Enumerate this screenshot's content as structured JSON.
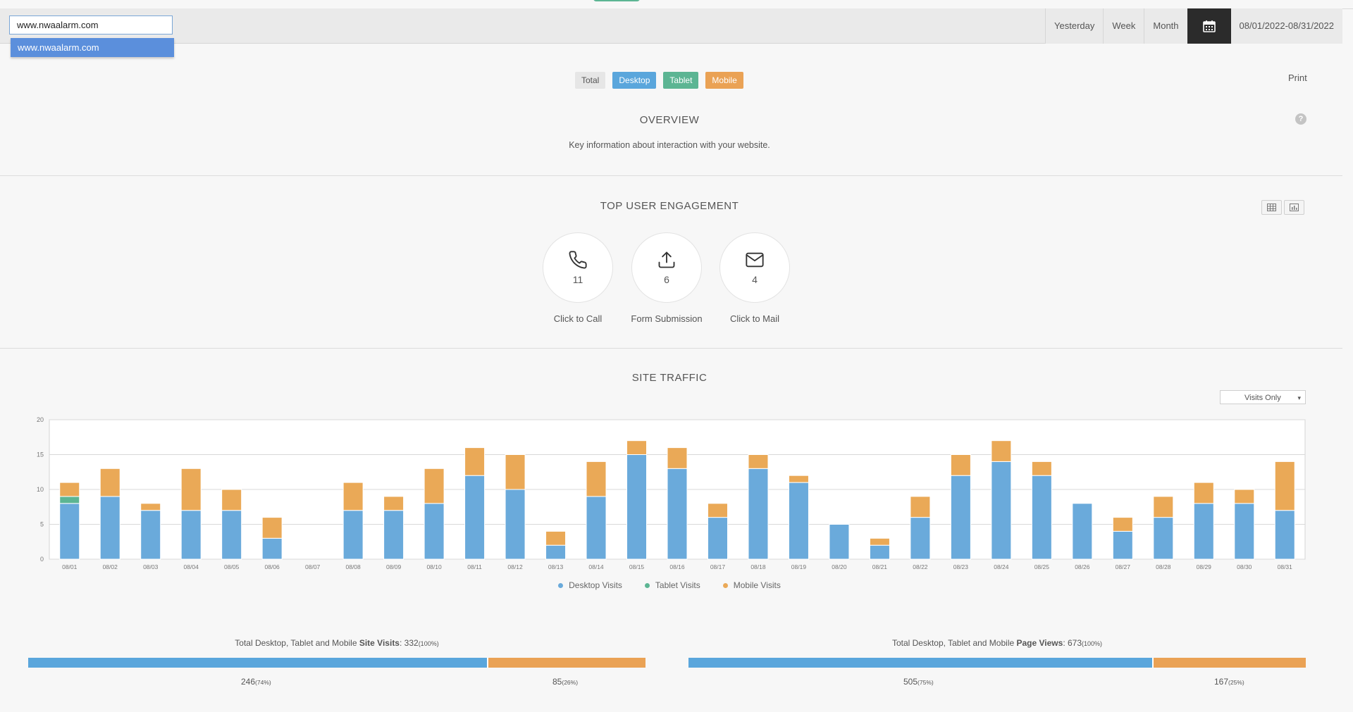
{
  "toolbar": {
    "site_value": "www.nwaalarm.com",
    "dropdown_option": "www.nwaalarm.com",
    "ranges": [
      "Yesterday",
      "Week",
      "Month"
    ],
    "calendar_icon": "calendar-icon",
    "date_range": "08/01/2022-08/31/2022"
  },
  "filters": {
    "total": "Total",
    "desktop": "Desktop",
    "tablet": "Tablet",
    "mobile": "Mobile"
  },
  "print_label": "Print",
  "overview": {
    "title": "OVERVIEW",
    "subtitle": "Key information about interaction with your website.",
    "help": "?"
  },
  "engagement": {
    "title": "TOP  USER  ENGAGEMENT",
    "items": [
      {
        "icon": "phone-icon",
        "value": "11",
        "label": "Click to Call"
      },
      {
        "icon": "upload-icon",
        "value": "6",
        "label": "Form Submission"
      },
      {
        "icon": "mail-icon",
        "value": "4",
        "label": "Click to Mail"
      }
    ]
  },
  "traffic": {
    "title": "SITE  TRAFFIC",
    "select": "Visits Only"
  },
  "chart_data": {
    "type": "bar",
    "stacked": true,
    "categories": [
      "08/01",
      "08/02",
      "08/03",
      "08/04",
      "08/05",
      "08/06",
      "08/07",
      "08/08",
      "08/09",
      "08/10",
      "08/11",
      "08/12",
      "08/13",
      "08/14",
      "08/15",
      "08/16",
      "08/17",
      "08/18",
      "08/19",
      "08/20",
      "08/21",
      "08/22",
      "08/23",
      "08/24",
      "08/25",
      "08/26",
      "08/27",
      "08/28",
      "08/29",
      "08/30",
      "08/31"
    ],
    "series": [
      {
        "name": "Desktop Visits",
        "color": "#6aaadb",
        "values": [
          8,
          9,
          7,
          7,
          7,
          3,
          0,
          7,
          7,
          8,
          12,
          10,
          2,
          9,
          15,
          13,
          6,
          13,
          11,
          5,
          2,
          6,
          12,
          14,
          12,
          8,
          4,
          6,
          8,
          8,
          7
        ]
      },
      {
        "name": "Tablet Visits",
        "color": "#5cb593",
        "values": [
          1,
          0,
          0,
          0,
          0,
          0,
          0,
          0,
          0,
          0,
          0,
          0,
          0,
          0,
          0,
          0,
          0,
          0,
          0,
          0,
          0,
          0,
          0,
          0,
          0,
          0,
          0,
          0,
          0,
          0,
          0
        ]
      },
      {
        "name": "Mobile Visits",
        "color": "#eaa957",
        "values": [
          2,
          4,
          1,
          6,
          3,
          3,
          0,
          4,
          2,
          5,
          4,
          5,
          2,
          5,
          2,
          3,
          2,
          2,
          1,
          0,
          1,
          3,
          3,
          3,
          2,
          0,
          2,
          3,
          3,
          2,
          7
        ]
      }
    ],
    "ylim": [
      0,
      20
    ],
    "yticks": [
      0,
      5,
      10,
      15,
      20
    ],
    "grid": true,
    "legend": "bottom"
  },
  "stats": {
    "visits": {
      "prefix": "Total Desktop, Tablet and Mobile ",
      "bold": "Site Visits",
      "value": ": 332",
      "pct": "(100%)",
      "desktop": 246,
      "desktop_pct": "(74%)",
      "mobile": 85,
      "mobile_pct": "(26%)"
    },
    "views": {
      "prefix": "Total Desktop, Tablet and Mobile ",
      "bold": "Page Views",
      "value": ": 673",
      "pct": "(100%)",
      "desktop": 505,
      "desktop_pct": "(75%)",
      "mobile": 167,
      "mobile_pct": "(25%)"
    }
  }
}
